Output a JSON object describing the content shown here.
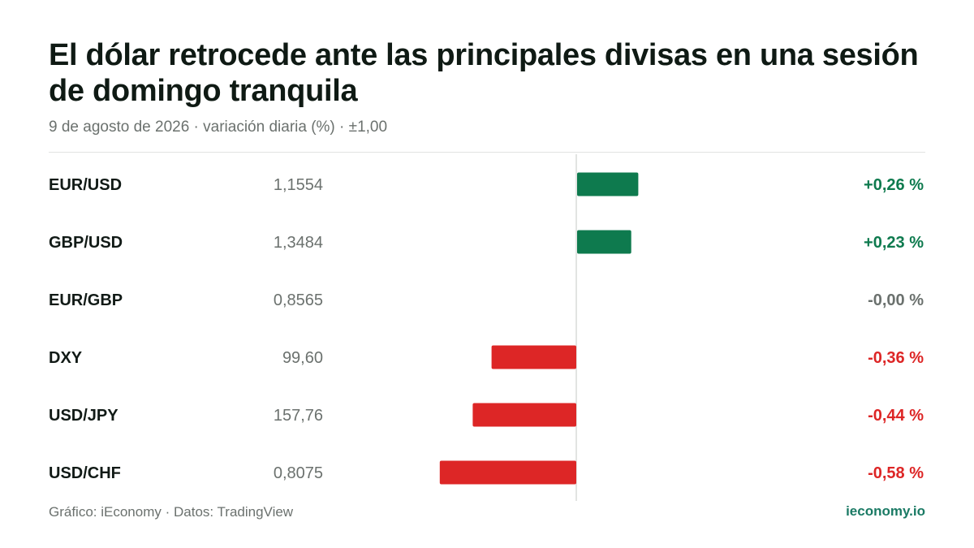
{
  "header": {
    "title": "El dólar retrocede ante las principales divisas en una sesión de domingo tranquila",
    "subtitle": "9 de agosto de 2026 · variación diaria (%) · ±1,00"
  },
  "footer": {
    "source": "Gráfico: iEconomy · Datos: TradingView",
    "brand": "ieconomy.io"
  },
  "colors": {
    "positive": "#0e7a4e",
    "negative": "#dd2626",
    "neutral": "#6b716e",
    "axis": "#d8dbd9"
  },
  "chart_data": {
    "type": "bar",
    "orientation": "horizontal",
    "axis_range": [
      -1.0,
      1.0
    ],
    "categories": [
      "EUR/USD",
      "GBP/USD",
      "EUR/GBP",
      "DXY",
      "USD/JPY",
      "USD/CHF"
    ],
    "prices": [
      "1,1554",
      "1,3484",
      "0,8565",
      "99,60",
      "157,76",
      "0,8075"
    ],
    "values": [
      0.26,
      0.23,
      0.0,
      -0.36,
      -0.44,
      -0.58
    ],
    "value_labels": [
      "+0,26 %",
      "+0,23 %",
      "-0,00 %",
      "-0,36 %",
      "-0,44 %",
      "-0,58 %"
    ],
    "grid": false,
    "legend": "none"
  }
}
